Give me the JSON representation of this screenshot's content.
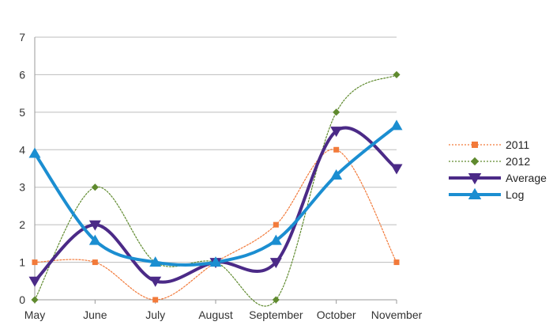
{
  "chart_data": {
    "type": "line",
    "categories": [
      "May",
      "June",
      "July",
      "August",
      "September",
      "October",
      "November"
    ],
    "ylim": [
      0,
      7
    ],
    "yticks": [
      0,
      1,
      2,
      3,
      4,
      5,
      6,
      7
    ],
    "grid": "horizontal",
    "legend_position": "right",
    "series": [
      {
        "name": "2011",
        "values": [
          1,
          1,
          0,
          1,
          2,
          4,
          1
        ],
        "color": "#f27a3a",
        "style": "dotted",
        "marker": "square"
      },
      {
        "name": "2012",
        "values": [
          0,
          3,
          1,
          1,
          0,
          5,
          6
        ],
        "color": "#5f8a2e",
        "style": "dotted",
        "marker": "diamond"
      },
      {
        "name": "Average",
        "values": [
          0.5,
          2,
          0.5,
          1,
          1,
          4.5,
          3.5
        ],
        "color": "#4b2a87",
        "style": "solid",
        "marker": "triangle-down"
      },
      {
        "name": "Log",
        "values": [
          3.9,
          1.58,
          1,
          1,
          1.58,
          3.32,
          4.64
        ],
        "color": "#1b8ed1",
        "style": "solid",
        "marker": "triangle-up"
      }
    ]
  }
}
